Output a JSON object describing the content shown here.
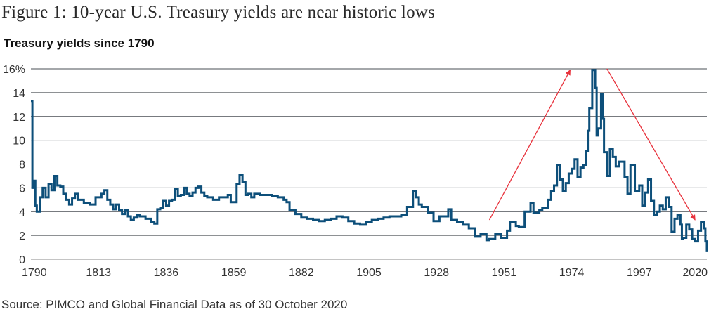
{
  "chart_data": {
    "type": "line",
    "title": "Figure 1: 10-year U.S. Treasury yields are near historic lows",
    "subtitle": "Treasury yields since 1790",
    "source": "Source: PIMCO and Global Financial Data as of 30 October 2020",
    "xlabel": "",
    "ylabel": "",
    "xlim": [
      1790,
      2020
    ],
    "ylim": [
      0,
      16
    ],
    "grid": true,
    "legend": "none",
    "x_ticks": [
      "1790",
      "1813",
      "1836",
      "1859",
      "1882",
      "1905",
      "1928",
      "1951",
      "1974",
      "1997",
      "2020"
    ],
    "y_ticks": [
      "0",
      "2",
      "4",
      "6",
      "8",
      "10",
      "12",
      "14",
      "16%"
    ],
    "series": [
      {
        "name": "10-year U.S. Treasury yield (%)",
        "color": "#0d4f7a",
        "points": [
          [
            1790,
            13.3
          ],
          [
            1790.5,
            6.0
          ],
          [
            1791,
            6.6
          ],
          [
            1791.5,
            4.5
          ],
          [
            1792,
            4.0
          ],
          [
            1793,
            5.2
          ],
          [
            1794,
            6.0
          ],
          [
            1795,
            5.2
          ],
          [
            1796,
            6.3
          ],
          [
            1797,
            5.8
          ],
          [
            1798,
            7.0
          ],
          [
            1799,
            6.2
          ],
          [
            1800,
            6.1
          ],
          [
            1801,
            5.5
          ],
          [
            1802,
            5.0
          ],
          [
            1803,
            4.6
          ],
          [
            1804,
            5.1
          ],
          [
            1805,
            5.5
          ],
          [
            1806,
            5.0
          ],
          [
            1808,
            4.7
          ],
          [
            1810,
            4.6
          ],
          [
            1811,
            4.6
          ],
          [
            1812,
            5.2
          ],
          [
            1814,
            5.5
          ],
          [
            1815,
            5.8
          ],
          [
            1816,
            5.0
          ],
          [
            1817,
            4.6
          ],
          [
            1818,
            4.2
          ],
          [
            1819,
            4.6
          ],
          [
            1820,
            4.1
          ],
          [
            1821,
            3.8
          ],
          [
            1822,
            4.1
          ],
          [
            1823,
            3.6
          ],
          [
            1824,
            3.3
          ],
          [
            1825,
            3.5
          ],
          [
            1826,
            3.7
          ],
          [
            1827,
            3.6
          ],
          [
            1829,
            3.4
          ],
          [
            1831,
            3.1
          ],
          [
            1832,
            3.0
          ],
          [
            1833,
            4.2
          ],
          [
            1834,
            4.3
          ],
          [
            1835,
            4.9
          ],
          [
            1836,
            4.5
          ],
          [
            1837,
            4.9
          ],
          [
            1838,
            5.0
          ],
          [
            1839,
            5.9
          ],
          [
            1840,
            5.3
          ],
          [
            1841,
            5.4
          ],
          [
            1842,
            6.0
          ],
          [
            1843,
            5.5
          ],
          [
            1844,
            5.3
          ],
          [
            1845,
            5.6
          ],
          [
            1846,
            6.0
          ],
          [
            1847,
            6.1
          ],
          [
            1848,
            5.6
          ],
          [
            1849,
            5.3
          ],
          [
            1850,
            5.2
          ],
          [
            1852,
            5.0
          ],
          [
            1854,
            5.2
          ],
          [
            1856,
            5.2
          ],
          [
            1857,
            5.4
          ],
          [
            1858,
            4.8
          ],
          [
            1859,
            4.8
          ],
          [
            1860,
            6.3
          ],
          [
            1861,
            7.1
          ],
          [
            1862,
            6.5
          ],
          [
            1863,
            5.4
          ],
          [
            1864,
            5.5
          ],
          [
            1865,
            5.2
          ],
          [
            1866,
            5.5
          ],
          [
            1868,
            5.4
          ],
          [
            1870,
            5.4
          ],
          [
            1872,
            5.3
          ],
          [
            1874,
            5.2
          ],
          [
            1876,
            5.0
          ],
          [
            1877,
            4.8
          ],
          [
            1878,
            4.1
          ],
          [
            1880,
            3.8
          ],
          [
            1882,
            3.5
          ],
          [
            1884,
            3.4
          ],
          [
            1886,
            3.3
          ],
          [
            1888,
            3.2
          ],
          [
            1890,
            3.3
          ],
          [
            1892,
            3.4
          ],
          [
            1894,
            3.6
          ],
          [
            1896,
            3.5
          ],
          [
            1898,
            3.2
          ],
          [
            1900,
            3.0
          ],
          [
            1902,
            2.9
          ],
          [
            1904,
            3.1
          ],
          [
            1906,
            3.3
          ],
          [
            1908,
            3.4
          ],
          [
            1910,
            3.5
          ],
          [
            1912,
            3.6
          ],
          [
            1914,
            3.6
          ],
          [
            1916,
            3.7
          ],
          [
            1918,
            4.4
          ],
          [
            1920,
            5.7
          ],
          [
            1921,
            5.2
          ],
          [
            1922,
            4.6
          ],
          [
            1923,
            4.4
          ],
          [
            1925,
            3.9
          ],
          [
            1927,
            3.2
          ],
          [
            1929,
            3.6
          ],
          [
            1932,
            4.2
          ],
          [
            1933,
            3.3
          ],
          [
            1935,
            3.1
          ],
          [
            1937,
            2.9
          ],
          [
            1939,
            2.6
          ],
          [
            1941,
            1.9
          ],
          [
            1943,
            2.1
          ],
          [
            1945,
            1.6
          ],
          [
            1946,
            1.7
          ],
          [
            1948,
            2.1
          ],
          [
            1950,
            1.8
          ],
          [
            1952,
            2.4
          ],
          [
            1953,
            3.1
          ],
          [
            1955,
            2.8
          ],
          [
            1956,
            2.7
          ],
          [
            1958,
            4.0
          ],
          [
            1960,
            4.7
          ],
          [
            1961,
            3.9
          ],
          [
            1963,
            4.1
          ],
          [
            1964,
            4.3
          ],
          [
            1966,
            5.0
          ],
          [
            1967,
            5.7
          ],
          [
            1968,
            6.2
          ],
          [
            1969,
            7.9
          ],
          [
            1970,
            6.7
          ],
          [
            1971,
            5.7
          ],
          [
            1972,
            6.4
          ],
          [
            1973,
            7.2
          ],
          [
            1974,
            7.6
          ],
          [
            1975,
            8.4
          ],
          [
            1976,
            6.9
          ],
          [
            1977,
            7.7
          ],
          [
            1978,
            7.9
          ],
          [
            1979,
            9.1
          ],
          [
            1979.5,
            10.8
          ],
          [
            1980,
            12.7
          ],
          [
            1981,
            15.9
          ],
          [
            1982,
            14.4
          ],
          [
            1982.5,
            10.4
          ],
          [
            1983,
            11.0
          ],
          [
            1984,
            13.9
          ],
          [
            1984.5,
            11.8
          ],
          [
            1985,
            9.0
          ],
          [
            1986,
            7.0
          ],
          [
            1987,
            9.3
          ],
          [
            1988,
            8.6
          ],
          [
            1989,
            7.8
          ],
          [
            1990,
            8.2
          ],
          [
            1992,
            6.9
          ],
          [
            1993,
            5.5
          ],
          [
            1994,
            7.9
          ],
          [
            1995.5,
            5.7
          ],
          [
            1997,
            6.2
          ],
          [
            1998,
            4.5
          ],
          [
            1999,
            5.6
          ],
          [
            2000,
            6.7
          ],
          [
            2001,
            4.9
          ],
          [
            2002,
            3.7
          ],
          [
            2003,
            4.0
          ],
          [
            2004,
            4.5
          ],
          [
            2005,
            4.2
          ],
          [
            2006,
            5.2
          ],
          [
            2007,
            4.4
          ],
          [
            2008,
            2.3
          ],
          [
            2009,
            3.4
          ],
          [
            2010,
            3.7
          ],
          [
            2011,
            2.9
          ],
          [
            2011.5,
            1.7
          ],
          [
            2012,
            1.8
          ],
          [
            2013,
            2.9
          ],
          [
            2014,
            2.5
          ],
          [
            2015,
            1.7
          ],
          [
            2016,
            1.5
          ],
          [
            2017,
            2.4
          ],
          [
            2018,
            3.1
          ],
          [
            2019,
            2.6
          ],
          [
            2019.5,
            1.5
          ],
          [
            2020,
            0.6
          ]
        ]
      }
    ],
    "annotations": [
      {
        "type": "arrow",
        "color": "#e8323c",
        "from": [
          1946,
          3.3
        ],
        "to": [
          1973.5,
          15.9
        ]
      },
      {
        "type": "arrow",
        "color": "#e8323c",
        "from": [
          1986,
          16
        ],
        "to": [
          2016,
          3.3
        ]
      }
    ]
  }
}
